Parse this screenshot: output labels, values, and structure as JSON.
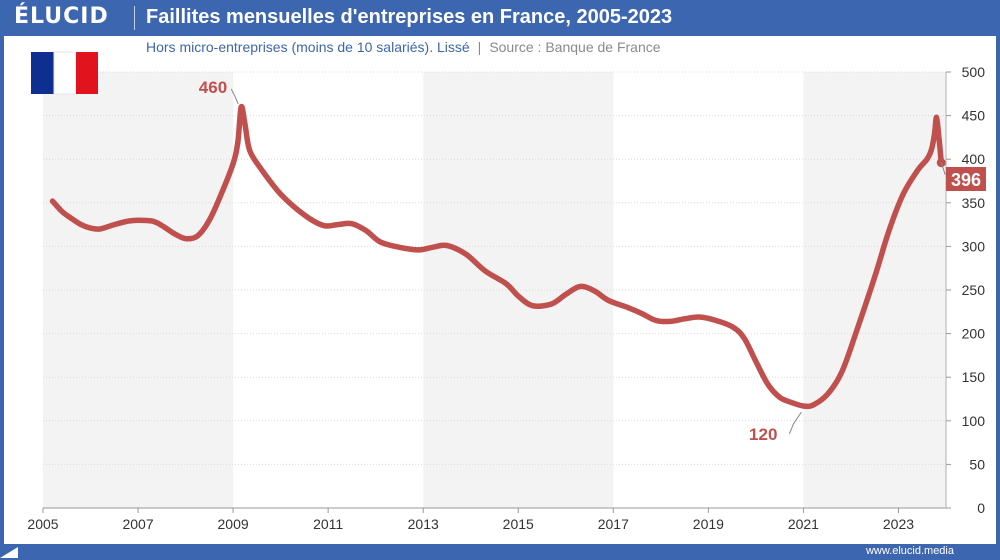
{
  "header": {
    "logo": "ÉLUCID",
    "title": "Faillites mensuelles d'entreprises en France, 2005-2023",
    "subtitle": "Hors micro-entreprises (moins de 10 salariés). Lissé",
    "separator": "|",
    "source": "Source : Banque de France"
  },
  "flag": {
    "icon": "france-flag-icon",
    "colors": [
      "#0e2f8f",
      "#ffffff",
      "#e1131c"
    ]
  },
  "footer": {
    "url": "www.elucid.media",
    "icon": "elucid-logo-mark-icon"
  },
  "colors": {
    "line": "#c0504d",
    "band": "#f3f3f3",
    "grid": "#d9d9d9",
    "axis_text": "#333333",
    "brand": "#3d66b0",
    "subtitle": "#3d66b0",
    "source": "#8a8a8a"
  },
  "chart_data": {
    "type": "line",
    "title": "Faillites mensuelles d'entreprises en France, 2005-2023",
    "xlim": [
      2005,
      2024.0
    ],
    "ylim": [
      0,
      500
    ],
    "x_ticks": [
      2005,
      2007,
      2009,
      2011,
      2013,
      2015,
      2017,
      2019,
      2021,
      2023
    ],
    "x_tick_labels": [
      "2005",
      "2007",
      "2009",
      "2011",
      "2013",
      "2015",
      "2017",
      "2019",
      "2021",
      "2023"
    ],
    "y_ticks": [
      0,
      50,
      100,
      150,
      200,
      250,
      300,
      350,
      400,
      450,
      500
    ],
    "y_tick_labels": [
      "0",
      "50",
      "100",
      "150",
      "200",
      "250",
      "300",
      "350",
      "400",
      "450",
      "500"
    ],
    "y_axis_side": "right",
    "grid": true,
    "shaded_bands": [
      [
        2005,
        2009
      ],
      [
        2013,
        2017
      ],
      [
        2021,
        2024.0
      ]
    ],
    "series": [
      {
        "points": [
          [
            2005.2,
            352
          ],
          [
            2005.4,
            340
          ],
          [
            2005.6,
            332
          ],
          [
            2005.8,
            325
          ],
          [
            2006.0,
            321
          ],
          [
            2006.2,
            320
          ],
          [
            2006.5,
            325
          ],
          [
            2006.8,
            329
          ],
          [
            2007.0,
            330
          ],
          [
            2007.3,
            329
          ],
          [
            2007.5,
            324
          ],
          [
            2007.75,
            315
          ],
          [
            2008.0,
            309
          ],
          [
            2008.25,
            312
          ],
          [
            2008.5,
            330
          ],
          [
            2008.75,
            360
          ],
          [
            2009.0,
            395
          ],
          [
            2009.1,
            420
          ],
          [
            2009.17,
            460
          ],
          [
            2009.25,
            440
          ],
          [
            2009.35,
            410
          ],
          [
            2009.6,
            388
          ],
          [
            2010.0,
            360
          ],
          [
            2010.5,
            336
          ],
          [
            2010.9,
            324
          ],
          [
            2011.2,
            325
          ],
          [
            2011.5,
            326
          ],
          [
            2011.8,
            318
          ],
          [
            2012.1,
            305
          ],
          [
            2012.5,
            299
          ],
          [
            2012.9,
            296
          ],
          [
            2013.2,
            299
          ],
          [
            2013.5,
            301
          ],
          [
            2013.9,
            291
          ],
          [
            2014.3,
            272
          ],
          [
            2014.75,
            257
          ],
          [
            2015.0,
            243
          ],
          [
            2015.3,
            232
          ],
          [
            2015.7,
            234
          ],
          [
            2016.0,
            245
          ],
          [
            2016.3,
            254
          ],
          [
            2016.6,
            249
          ],
          [
            2016.9,
            238
          ],
          [
            2017.3,
            230
          ],
          [
            2017.6,
            223
          ],
          [
            2017.9,
            215
          ],
          [
            2018.2,
            214
          ],
          [
            2018.5,
            217
          ],
          [
            2018.8,
            219
          ],
          [
            2019.1,
            216
          ],
          [
            2019.5,
            208
          ],
          [
            2019.75,
            195
          ],
          [
            2020.0,
            168
          ],
          [
            2020.25,
            142
          ],
          [
            2020.5,
            127
          ],
          [
            2020.75,
            121
          ],
          [
            2021.0,
            117
          ],
          [
            2021.2,
            118
          ],
          [
            2021.5,
            130
          ],
          [
            2021.8,
            155
          ],
          [
            2022.1,
            200
          ],
          [
            2022.5,
            265
          ],
          [
            2022.8,
            318
          ],
          [
            2023.1,
            360
          ],
          [
            2023.4,
            387
          ],
          [
            2023.6,
            400
          ],
          [
            2023.7,
            412
          ],
          [
            2023.76,
            430
          ],
          [
            2023.8,
            448
          ],
          [
            2023.85,
            425
          ],
          [
            2023.9,
            396
          ]
        ],
        "color": "#c0504d"
      }
    ],
    "annotations": [
      {
        "label": "460",
        "x": 2009.17,
        "y": 460,
        "callout": "upper-left"
      },
      {
        "label": "120",
        "x": 2021.0,
        "y": 117,
        "callout": "lower-left"
      },
      {
        "label": "396",
        "x": 2023.9,
        "y": 396,
        "callout": "last-value-box"
      }
    ]
  }
}
